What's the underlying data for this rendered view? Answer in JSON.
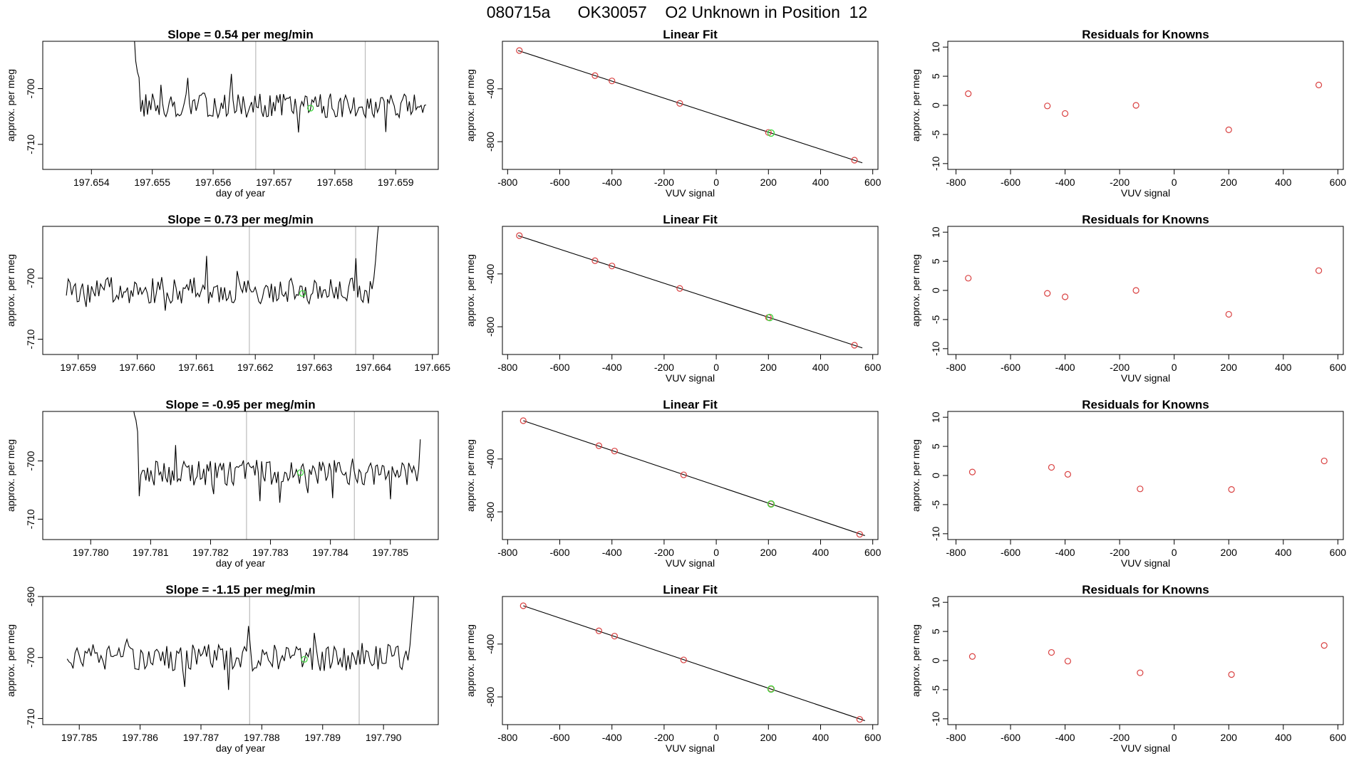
{
  "figure": {
    "title": "080715a      OK30057    O2 Unknown in Position  12",
    "colors": {
      "trace": "#000000",
      "marker_known": "#d94040",
      "marker_unknown": "#44d944",
      "vline": "#bbbbbb",
      "axis": "#000000"
    }
  },
  "chart_data": [
    {
      "type": "line",
      "panel": "timeseries",
      "row": 0,
      "title": "Slope =  0.54  per meg/min",
      "xlabel": "day of year",
      "ylabel": "approx. per meg",
      "xlim": [
        197.6532,
        197.6597
      ],
      "ylim": [
        -714.5,
        -691.5
      ],
      "xticks": [
        "197.654",
        "197.655",
        "197.656",
        "197.657",
        "197.658",
        "197.659"
      ],
      "xtick_values": [
        197.654,
        197.655,
        197.656,
        197.657,
        197.658,
        197.659
      ],
      "yticks": [
        "-700",
        "-710"
      ],
      "ytick_values": [
        -700,
        -710
      ],
      "vlines": [
        197.6567,
        197.6585
      ],
      "unknown_point": {
        "x": 197.6576,
        "y": -703.5
      },
      "trace": {
        "x0": 197.6547,
        "x1": 197.6595,
        "start_values": [
          -690,
          -695,
          -697,
          -698
        ],
        "level": -703,
        "amplitude": 2.2,
        "end_values": []
      }
    },
    {
      "type": "line",
      "panel": "timeseries",
      "row": 1,
      "title": "Slope =  0.73  per meg/min",
      "xlabel": "",
      "ylabel": "approx. per meg",
      "xlim": [
        197.6584,
        197.6651
      ],
      "ylim": [
        -712.5,
        -691.5
      ],
      "xticks": [
        "197.659",
        "197.660",
        "197.661",
        "197.662",
        "197.663",
        "197.664",
        "197.665"
      ],
      "xtick_values": [
        197.659,
        197.66,
        197.661,
        197.662,
        197.663,
        197.664,
        197.665
      ],
      "yticks": [
        "-700",
        "-710"
      ],
      "ytick_values": [
        -700,
        -710
      ],
      "vlines": [
        197.6619,
        197.6637
      ],
      "unknown_point": {
        "x": 197.6628,
        "y": -702.5
      },
      "trace": {
        "x0": 197.6588,
        "x1": 197.6641,
        "start_values": [],
        "level": -702,
        "amplitude": 2.2,
        "end_values": [
          -700,
          -697,
          -693,
          -690
        ]
      }
    },
    {
      "type": "line",
      "panel": "timeseries",
      "row": 2,
      "title": "Slope =  -0.95  per meg/min",
      "xlabel": "day of year",
      "ylabel": "approx. per meg",
      "xlim": [
        197.7792,
        197.7858
      ],
      "ylim": [
        -713.5,
        -691.5
      ],
      "xticks": [
        "197.780",
        "197.781",
        "197.782",
        "197.783",
        "197.784",
        "197.785"
      ],
      "xtick_values": [
        197.78,
        197.781,
        197.782,
        197.783,
        197.784,
        197.785
      ],
      "yticks": [
        "-700",
        "-710"
      ],
      "ytick_values": [
        -700,
        -710
      ],
      "vlines": [
        197.7826,
        197.7844
      ],
      "unknown_point": {
        "x": 197.7835,
        "y": -702
      },
      "trace": {
        "x0": 197.7807,
        "x1": 197.7855,
        "start_values": [
          -690,
          -692,
          -693,
          -695
        ],
        "level": -702,
        "amplitude": 2.2,
        "end_values": []
      }
    },
    {
      "type": "line",
      "panel": "timeseries",
      "row": 3,
      "title": "Slope =  -1.15  per meg/min",
      "xlabel": "day of year",
      "ylabel": "approx. per meg",
      "xlim": [
        197.7844,
        197.7909
      ],
      "ylim": [
        -711,
        -690
      ],
      "xticks": [
        "197.785",
        "197.786",
        "197.787",
        "197.788",
        "197.789",
        "197.790"
      ],
      "xtick_values": [
        197.785,
        197.786,
        197.787,
        197.788,
        197.789,
        197.79
      ],
      "yticks": [
        "-690",
        "-700",
        "-710"
      ],
      "ytick_values": [
        -690,
        -700,
        -710
      ],
      "vlines": [
        197.7878,
        197.7896
      ],
      "unknown_point": {
        "x": 197.7887,
        "y": -700.3
      },
      "trace": {
        "x0": 197.7848,
        "x1": 197.7905,
        "start_values": [],
        "level": -700,
        "amplitude": 2.2,
        "end_values": [
          -698,
          -694,
          -690
        ]
      }
    },
    {
      "type": "scatter",
      "panel": "fit",
      "row": 0,
      "title": "Linear Fit",
      "xlabel": "VUV signal",
      "ylabel": "approx. per meg",
      "xlim": [
        -820,
        620
      ],
      "ylim": [
        -1010,
        -40
      ],
      "xticks": [
        "-800",
        "-600",
        "-400",
        "-200",
        "0",
        "200",
        "400",
        "600"
      ],
      "xtick_values": [
        -800,
        -600,
        -400,
        -200,
        0,
        200,
        400,
        600
      ],
      "yticks": [
        "-400",
        "-800"
      ],
      "ytick_values": [
        -400,
        -800
      ],
      "fit_line": {
        "x": [
          -760,
          560
        ],
        "y": [
          -110,
          -960
        ]
      },
      "knowns": {
        "x": [
          -755,
          -465,
          -400,
          -140,
          200,
          530
        ],
        "y": [
          -110,
          -300,
          -340,
          -510,
          -730,
          -940
        ]
      },
      "unknown": {
        "x": 210,
        "y": -735
      }
    },
    {
      "type": "scatter",
      "panel": "fit",
      "row": 1,
      "title": "Linear Fit",
      "xlabel": "VUV signal",
      "ylabel": "approx. per meg",
      "xlim": [
        -820,
        620
      ],
      "ylim": [
        -1010,
        -40
      ],
      "xticks": [
        "-800",
        "-600",
        "-400",
        "-200",
        "0",
        "200",
        "400",
        "600"
      ],
      "xtick_values": [
        -800,
        -600,
        -400,
        -200,
        0,
        200,
        400,
        600
      ],
      "yticks": [
        "-400",
        "-800"
      ],
      "ytick_values": [
        -400,
        -800
      ],
      "fit_line": {
        "x": [
          -760,
          560
        ],
        "y": [
          -110,
          -960
        ]
      },
      "knowns": {
        "x": [
          -755,
          -465,
          -400,
          -140,
          200,
          530
        ],
        "y": [
          -110,
          -300,
          -340,
          -510,
          -730,
          -940
        ]
      },
      "unknown": {
        "x": 205,
        "y": -730
      }
    },
    {
      "type": "scatter",
      "panel": "fit",
      "row": 2,
      "title": "Linear Fit",
      "xlabel": "VUV signal",
      "ylabel": "approx. per meg",
      "xlim": [
        -820,
        620
      ],
      "ylim": [
        -1010,
        -40
      ],
      "xticks": [
        "-800",
        "-600",
        "-400",
        "-200",
        "0",
        "200",
        "400",
        "600"
      ],
      "xtick_values": [
        -800,
        -600,
        -400,
        -200,
        0,
        200,
        400,
        600
      ],
      "yticks": [
        "-400",
        "-800"
      ],
      "ytick_values": [
        -400,
        -800
      ],
      "fit_line": {
        "x": [
          -740,
          570
        ],
        "y": [
          -110,
          -980
        ]
      },
      "knowns": {
        "x": [
          -740,
          -450,
          -390,
          -125,
          210,
          550
        ],
        "y": [
          -110,
          -300,
          -340,
          -520,
          -740,
          -970
        ]
      },
      "unknown": {
        "x": 210,
        "y": -740
      }
    },
    {
      "type": "scatter",
      "panel": "fit",
      "row": 3,
      "title": "Linear Fit",
      "xlabel": "VUV signal",
      "ylabel": "approx. per meg",
      "xlim": [
        -820,
        620
      ],
      "ylim": [
        -1010,
        -40
      ],
      "xticks": [
        "-800",
        "-600",
        "-400",
        "-200",
        "0",
        "200",
        "400",
        "600"
      ],
      "xtick_values": [
        -800,
        -600,
        -400,
        -200,
        0,
        200,
        400,
        600
      ],
      "yticks": [
        "-400",
        "-800"
      ],
      "ytick_values": [
        -400,
        -800
      ],
      "fit_line": {
        "x": [
          -740,
          570
        ],
        "y": [
          -110,
          -980
        ]
      },
      "knowns": {
        "x": [
          -740,
          -450,
          -390,
          -125,
          210,
          550
        ],
        "y": [
          -110,
          -300,
          -340,
          -520,
          -740,
          -970
        ]
      },
      "unknown": {
        "x": 210,
        "y": -740
      }
    },
    {
      "type": "scatter",
      "panel": "residuals",
      "row": 0,
      "title": "Residuals for Knowns",
      "xlabel": "VUV signal",
      "ylabel": "approx. per meg",
      "xlim": [
        -830,
        620
      ],
      "ylim": [
        -11,
        11
      ],
      "xticks": [
        "-800",
        "-600",
        "-400",
        "-200",
        "0",
        "200",
        "400",
        "600"
      ],
      "xtick_values": [
        -800,
        -600,
        -400,
        -200,
        0,
        200,
        400,
        600
      ],
      "yticks": [
        "-10",
        "-5",
        "0",
        "5",
        "10"
      ],
      "ytick_values": [
        -10,
        -5,
        0,
        5,
        10
      ],
      "knowns": {
        "x": [
          -755,
          -465,
          -400,
          -140,
          200,
          530
        ],
        "y": [
          2.0,
          -0.1,
          -1.4,
          0.0,
          -4.2,
          3.5
        ]
      }
    },
    {
      "type": "scatter",
      "panel": "residuals",
      "row": 1,
      "title": "Residuals for Knowns",
      "xlabel": "VUV signal",
      "ylabel": "approx. per meg",
      "xlim": [
        -830,
        620
      ],
      "ylim": [
        -11,
        11
      ],
      "xticks": [
        "-800",
        "-600",
        "-400",
        "-200",
        "0",
        "200",
        "400",
        "600"
      ],
      "xtick_values": [
        -800,
        -600,
        -400,
        -200,
        0,
        200,
        400,
        600
      ],
      "yticks": [
        "-10",
        "-5",
        "0",
        "5",
        "10"
      ],
      "ytick_values": [
        -10,
        -5,
        0,
        5,
        10
      ],
      "knowns": {
        "x": [
          -755,
          -465,
          -400,
          -140,
          200,
          530
        ],
        "y": [
          2.1,
          -0.5,
          -1.1,
          0.0,
          -4.1,
          3.4
        ]
      }
    },
    {
      "type": "scatter",
      "panel": "residuals",
      "row": 2,
      "title": "Residuals for Knowns",
      "xlabel": "VUV signal",
      "ylabel": "approx. per meg",
      "xlim": [
        -830,
        620
      ],
      "ylim": [
        -11,
        11
      ],
      "xticks": [
        "-800",
        "-600",
        "-400",
        "-200",
        "0",
        "200",
        "400",
        "600"
      ],
      "xtick_values": [
        -800,
        -600,
        -400,
        -200,
        0,
        200,
        400,
        600
      ],
      "yticks": [
        "-10",
        "-5",
        "0",
        "5",
        "10"
      ],
      "ytick_values": [
        -10,
        -5,
        0,
        5,
        10
      ],
      "knowns": {
        "x": [
          -740,
          -450,
          -390,
          -125,
          210,
          550
        ],
        "y": [
          0.6,
          1.4,
          0.2,
          -2.3,
          -2.4,
          2.5
        ]
      }
    },
    {
      "type": "scatter",
      "panel": "residuals",
      "row": 3,
      "title": "Residuals for Knowns",
      "xlabel": "VUV signal",
      "ylabel": "approx. per meg",
      "xlim": [
        -830,
        620
      ],
      "ylim": [
        -11,
        11
      ],
      "xticks": [
        "-800",
        "-600",
        "-400",
        "-200",
        "0",
        "200",
        "400",
        "600"
      ],
      "xtick_values": [
        -800,
        -600,
        -400,
        -200,
        0,
        200,
        400,
        600
      ],
      "yticks": [
        "-10",
        "-5",
        "0",
        "5",
        "10"
      ],
      "ytick_values": [
        -10,
        -5,
        0,
        5,
        10
      ],
      "knowns": {
        "x": [
          -740,
          -450,
          -390,
          -125,
          210,
          550
        ],
        "y": [
          0.7,
          1.4,
          -0.1,
          -2.1,
          -2.4,
          2.6
        ]
      }
    }
  ]
}
